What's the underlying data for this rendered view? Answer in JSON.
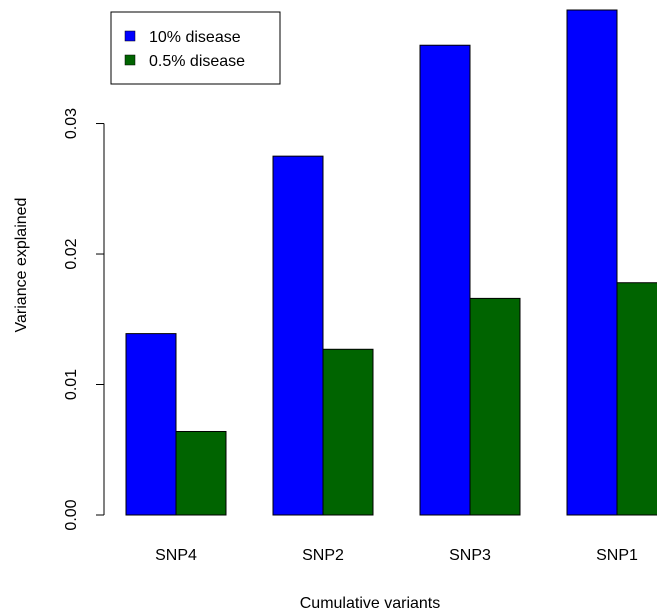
{
  "chart_data": {
    "type": "bar",
    "categories": [
      "SNP4",
      "SNP2",
      "SNP3",
      "SNP1"
    ],
    "series": [
      {
        "name": "10% disease",
        "color": "#0000ff",
        "values": [
          0.0139,
          0.0275,
          0.036,
          0.0387
        ]
      },
      {
        "name": "0.5% disease",
        "color": "#006400",
        "values": [
          0.0064,
          0.0127,
          0.0166,
          0.0178
        ]
      }
    ],
    "xlabel": "Cumulative variants",
    "ylabel": "Variance explained",
    "ylim": [
      0,
      0.0387
    ],
    "yticks": [
      0.0,
      0.01,
      0.02,
      0.03
    ],
    "ytick_labels": [
      "0.00",
      "0.01",
      "0.02",
      "0.03"
    ],
    "grid": false,
    "legend_position": "top-left"
  }
}
